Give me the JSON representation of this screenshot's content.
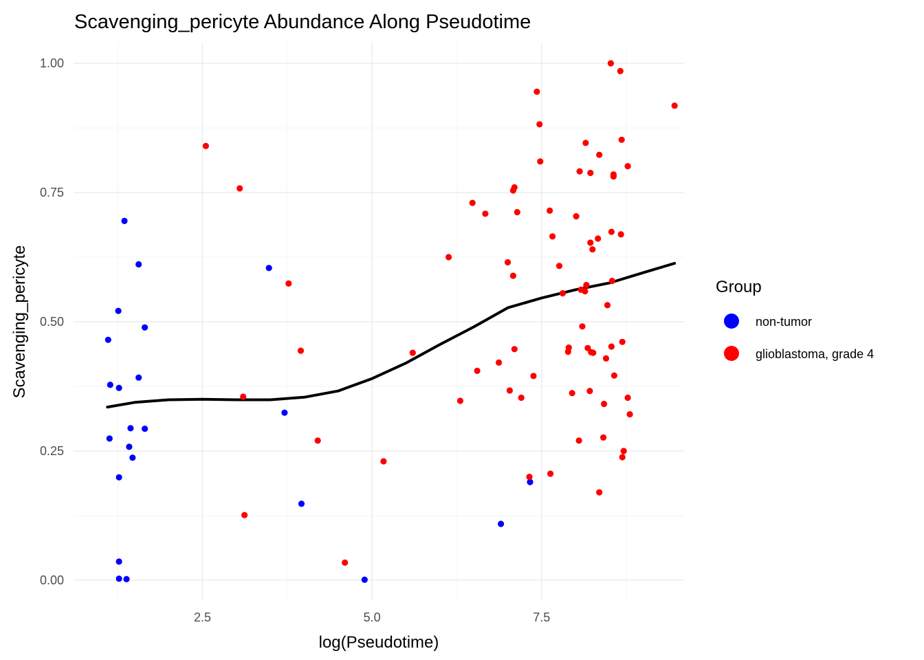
{
  "chart_data": {
    "type": "scatter",
    "title": "Scavenging_pericyte Abundance Along Pseudotime",
    "xlabel": "log(Pseudotime)",
    "ylabel": "Scavenging_pericyte",
    "xlim": [
      0.6,
      9.6
    ],
    "ylim": [
      -0.04,
      1.04
    ],
    "x_ticks": [
      2.5,
      5.0,
      7.5
    ],
    "x_tick_labels": [
      "2.5",
      "5.0",
      "7.5"
    ],
    "y_ticks": [
      0,
      0.25,
      0.5,
      0.75,
      1.0
    ],
    "y_tick_labels": [
      "0.00",
      "0.25",
      "0.50",
      "0.75",
      "1.00"
    ],
    "grid": true,
    "legend": {
      "title": "Group",
      "position": "right",
      "entries": [
        {
          "label": "non-tumor",
          "color": "#0000ff"
        },
        {
          "label": "glioblastoma, grade 4",
          "color": "#ff0000"
        }
      ]
    },
    "series": [
      {
        "name": "non-tumor",
        "color": "#0000ff",
        "points": [
          [
            1.35,
            0.695
          ],
          [
            1.56,
            0.611
          ],
          [
            1.26,
            0.521
          ],
          [
            1.65,
            0.489
          ],
          [
            1.11,
            0.465
          ],
          [
            1.56,
            0.392
          ],
          [
            1.14,
            0.378
          ],
          [
            1.27,
            0.372
          ],
          [
            1.44,
            0.294
          ],
          [
            1.65,
            0.293
          ],
          [
            1.13,
            0.274
          ],
          [
            1.42,
            0.258
          ],
          [
            1.47,
            0.237
          ],
          [
            1.27,
            0.199
          ],
          [
            1.27,
            0.036
          ],
          [
            1.27,
            0.003
          ],
          [
            1.38,
            0.002
          ],
          [
            3.48,
            0.604
          ],
          [
            3.71,
            0.324
          ],
          [
            3.96,
            0.148
          ],
          [
            4.89,
            0.001
          ],
          [
            6.9,
            0.109
          ],
          [
            7.33,
            0.19
          ]
        ]
      },
      {
        "name": "glioblastoma, grade 4",
        "color": "#ff0000",
        "points": [
          [
            2.55,
            0.84
          ],
          [
            3.05,
            0.758
          ],
          [
            3.1,
            0.355
          ],
          [
            3.12,
            0.126
          ],
          [
            3.77,
            0.574
          ],
          [
            3.95,
            0.444
          ],
          [
            4.2,
            0.27
          ],
          [
            4.6,
            0.034
          ],
          [
            5.17,
            0.23
          ],
          [
            5.6,
            0.44
          ],
          [
            6.13,
            0.625
          ],
          [
            6.3,
            0.347
          ],
          [
            6.48,
            0.73
          ],
          [
            6.55,
            0.405
          ],
          [
            6.67,
            0.709
          ],
          [
            6.87,
            0.421
          ],
          [
            7.0,
            0.615
          ],
          [
            7.03,
            0.367
          ],
          [
            7.08,
            0.754
          ],
          [
            7.1,
            0.76
          ],
          [
            7.08,
            0.589
          ],
          [
            7.1,
            0.447
          ],
          [
            7.14,
            0.712
          ],
          [
            7.2,
            0.353
          ],
          [
            7.32,
            0.2
          ],
          [
            7.38,
            0.395
          ],
          [
            7.43,
            0.945
          ],
          [
            7.47,
            0.882
          ],
          [
            7.48,
            0.81
          ],
          [
            7.62,
            0.715
          ],
          [
            7.66,
            0.665
          ],
          [
            7.63,
            0.206
          ],
          [
            7.76,
            0.608
          ],
          [
            7.81,
            0.555
          ],
          [
            7.89,
            0.442
          ],
          [
            7.9,
            0.45
          ],
          [
            7.95,
            0.362
          ],
          [
            8.01,
            0.704
          ],
          [
            8.06,
            0.791
          ],
          [
            8.05,
            0.27
          ],
          [
            8.08,
            0.562
          ],
          [
            8.1,
            0.491
          ],
          [
            8.14,
            0.559
          ],
          [
            8.15,
            0.846
          ],
          [
            8.16,
            0.571
          ],
          [
            8.18,
            0.449
          ],
          [
            8.21,
            0.366
          ],
          [
            8.22,
            0.788
          ],
          [
            8.22,
            0.653
          ],
          [
            8.23,
            0.441
          ],
          [
            8.25,
            0.64
          ],
          [
            8.26,
            0.44
          ],
          [
            8.33,
            0.661
          ],
          [
            8.35,
            0.823
          ],
          [
            8.35,
            0.17
          ],
          [
            8.41,
            0.276
          ],
          [
            8.42,
            0.341
          ],
          [
            8.45,
            0.429
          ],
          [
            8.47,
            0.532
          ],
          [
            8.52,
            1.0
          ],
          [
            8.53,
            0.674
          ],
          [
            8.53,
            0.452
          ],
          [
            8.54,
            0.579
          ],
          [
            8.56,
            0.785
          ],
          [
            8.56,
            0.781
          ],
          [
            8.57,
            0.396
          ],
          [
            8.66,
            0.985
          ],
          [
            8.67,
            0.669
          ],
          [
            8.68,
            0.852
          ],
          [
            8.69,
            0.461
          ],
          [
            8.69,
            0.238
          ],
          [
            8.71,
            0.25
          ],
          [
            8.77,
            0.801
          ],
          [
            8.77,
            0.353
          ],
          [
            8.8,
            0.321
          ],
          [
            9.46,
            0.918
          ]
        ]
      },
      {
        "name": "smooth",
        "type": "line",
        "color": "#000000",
        "points": [
          [
            1.1,
            0.335
          ],
          [
            1.5,
            0.344
          ],
          [
            2.0,
            0.349
          ],
          [
            2.5,
            0.35
          ],
          [
            3.0,
            0.349
          ],
          [
            3.5,
            0.349
          ],
          [
            4.0,
            0.354
          ],
          [
            4.5,
            0.366
          ],
          [
            5.0,
            0.39
          ],
          [
            5.5,
            0.42
          ],
          [
            6.0,
            0.456
          ],
          [
            6.5,
            0.49
          ],
          [
            7.0,
            0.527
          ],
          [
            7.5,
            0.546
          ],
          [
            8.0,
            0.562
          ],
          [
            8.5,
            0.575
          ],
          [
            9.0,
            0.595
          ],
          [
            9.46,
            0.613
          ]
        ]
      }
    ]
  }
}
